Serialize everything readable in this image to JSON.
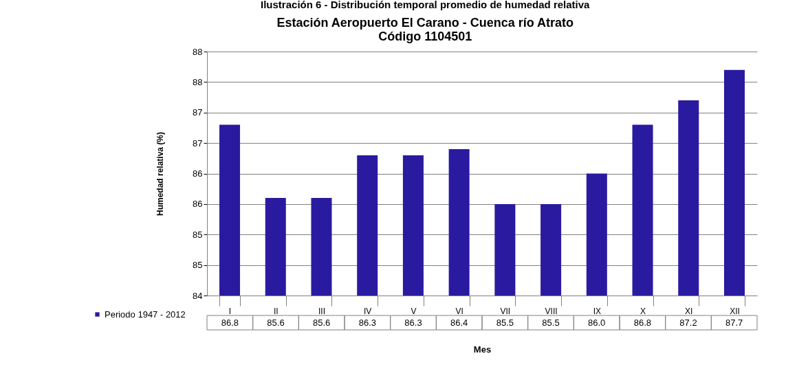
{
  "chart_data": {
    "type": "bar",
    "title": "Ilustración 6 - Distribución temporal promedio de humedad relativa",
    "subtitle": "Estación Aeropuerto El Carano - Cuenca río Atrato\nCódigo 1104501",
    "xlabel": "Mes",
    "ylabel": "Humedad relativa (%)",
    "categories": [
      "I",
      "II",
      "III",
      "IV",
      "V",
      "VI",
      "VII",
      "VIII",
      "IX",
      "X",
      "XI",
      "XII"
    ],
    "series": [
      {
        "name": "Periodo 1947 - 2012",
        "color": "#2a1aa0",
        "values": [
          86.8,
          85.6,
          85.6,
          86.3,
          86.3,
          86.4,
          85.5,
          85.5,
          86.0,
          86.8,
          87.2,
          87.7
        ],
        "value_labels": [
          "86.8",
          "85.6",
          "85.6",
          "86.3",
          "86.3",
          "86.4",
          "85.5",
          "85.5",
          "86.0",
          "86.8",
          "87.2",
          "87.7"
        ]
      }
    ],
    "ylim": [
      84,
      88
    ],
    "yticks": [
      84,
      {
        "value": 84.5,
        "label": "85"
      },
      85,
      {
        "value": 85.5,
        "label": "86"
      },
      86,
      {
        "value": 86.5,
        "label": "87"
      },
      87,
      {
        "value": 87.5,
        "label": "88"
      },
      88
    ],
    "grid": "y",
    "legend": "bottom left"
  }
}
